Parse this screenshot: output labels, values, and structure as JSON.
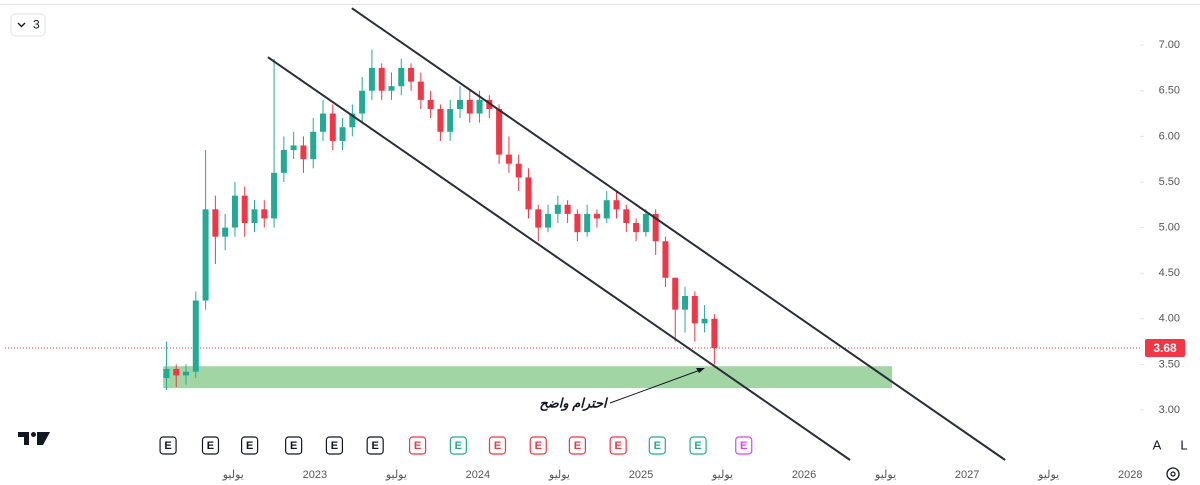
{
  "chart_data": {
    "type": "candlestick",
    "interval": "3",
    "up_color": "#22ab94",
    "down_color": "#f23645",
    "x": [
      2022.09,
      2022.15,
      2022.21,
      2022.27,
      2022.33,
      2022.39,
      2022.45,
      2022.51,
      2022.57,
      2022.63,
      2022.69,
      2022.75,
      2022.81,
      2022.87,
      2022.93,
      2022.99,
      2023.05,
      2023.11,
      2023.17,
      2023.23,
      2023.29,
      2023.35,
      2023.41,
      2023.47,
      2023.53,
      2023.59,
      2023.65,
      2023.71,
      2023.77,
      2023.83,
      2023.89,
      2023.95,
      2024.01,
      2024.07,
      2024.13,
      2024.19,
      2024.25,
      2024.31,
      2024.37,
      2024.43,
      2024.49,
      2024.55,
      2024.61,
      2024.67,
      2024.73,
      2024.79,
      2024.85,
      2024.91,
      2024.97,
      2025.03,
      2025.09,
      2025.15,
      2025.21,
      2025.27,
      2025.33,
      2025.39,
      2025.45
    ],
    "open": [
      3.35,
      3.45,
      3.38,
      3.42,
      4.2,
      5.2,
      4.9,
      5.0,
      5.35,
      5.05,
      5.2,
      5.1,
      5.6,
      5.85,
      5.9,
      5.75,
      6.05,
      6.25,
      5.95,
      6.1,
      6.25,
      6.5,
      6.75,
      6.5,
      6.55,
      6.75,
      6.6,
      6.4,
      6.3,
      6.05,
      6.3,
      6.4,
      6.25,
      6.4,
      6.3,
      5.8,
      5.7,
      5.55,
      5.2,
      5.0,
      5.15,
      5.25,
      5.15,
      4.95,
      5.15,
      5.1,
      5.3,
      5.2,
      5.05,
      4.95,
      5.15,
      4.85,
      4.45,
      4.1,
      4.25,
      3.95,
      4.0
    ],
    "high": [
      3.75,
      3.5,
      3.5,
      4.3,
      5.85,
      5.35,
      5.15,
      5.5,
      5.45,
      5.3,
      5.3,
      6.85,
      6.0,
      6.05,
      6.0,
      6.2,
      6.4,
      6.35,
      6.2,
      6.35,
      6.65,
      6.95,
      6.8,
      6.7,
      6.85,
      6.8,
      6.7,
      6.5,
      6.35,
      6.4,
      6.55,
      6.5,
      6.5,
      6.45,
      6.35,
      6.0,
      5.8,
      5.65,
      5.25,
      5.25,
      5.35,
      5.3,
      5.2,
      5.25,
      5.2,
      5.4,
      5.4,
      5.25,
      5.1,
      5.2,
      5.2,
      4.9,
      4.45,
      4.35,
      4.3,
      4.15,
      4.05
    ],
    "low": [
      3.22,
      3.25,
      3.28,
      3.35,
      4.1,
      4.6,
      4.75,
      4.9,
      4.9,
      4.95,
      5.0,
      5.0,
      5.5,
      5.75,
      5.6,
      5.65,
      5.95,
      5.85,
      5.85,
      6.0,
      6.15,
      6.4,
      6.4,
      6.4,
      6.45,
      6.5,
      6.3,
      6.2,
      5.95,
      5.95,
      6.2,
      6.15,
      6.15,
      6.2,
      5.7,
      5.6,
      5.4,
      5.1,
      4.85,
      4.95,
      5.05,
      5.05,
      4.85,
      4.9,
      5.0,
      5.05,
      5.1,
      4.95,
      4.85,
      4.9,
      4.7,
      4.35,
      3.75,
      3.85,
      3.75,
      3.85,
      3.5
    ],
    "close": [
      3.45,
      3.38,
      3.42,
      4.2,
      5.2,
      4.9,
      5.0,
      5.35,
      5.05,
      5.2,
      5.1,
      5.6,
      5.85,
      5.9,
      5.75,
      6.05,
      6.25,
      5.95,
      6.1,
      6.25,
      6.5,
      6.75,
      6.5,
      6.55,
      6.75,
      6.6,
      6.4,
      6.3,
      6.05,
      6.3,
      6.4,
      6.25,
      6.4,
      6.3,
      5.8,
      5.7,
      5.55,
      5.2,
      5.0,
      5.15,
      5.25,
      5.15,
      4.95,
      5.15,
      5.1,
      5.3,
      5.2,
      5.05,
      4.95,
      5.15,
      4.85,
      4.45,
      4.1,
      4.25,
      3.95,
      4.0,
      3.68
    ],
    "xlim": [
      2021.1,
      2028.06
    ],
    "ylim": [
      2.43,
      7.44
    ],
    "xticks": [
      {
        "value": 2022.5,
        "label": "يوليو"
      },
      2023,
      {
        "value": 2023.5,
        "label": "يوليو"
      },
      2024,
      {
        "value": 2024.5,
        "label": "يوليو"
      },
      2025,
      {
        "value": 2025.5,
        "label": "يوليو"
      },
      2026,
      {
        "value": 2026.5,
        "label": "يوليو"
      },
      2027,
      {
        "value": 2027.5,
        "label": "يوليو"
      },
      2028
    ],
    "yticks": [
      {
        "value": 3,
        "label": "3.00"
      },
      {
        "value": 3.5,
        "label": "3.50"
      },
      {
        "value": 4,
        "label": "4.00"
      },
      {
        "value": 4.5,
        "label": "4.50"
      },
      {
        "value": 5,
        "label": "5.00"
      },
      {
        "value": 5.5,
        "label": "5.50"
      },
      {
        "value": 6,
        "label": "6.00"
      },
      {
        "value": 6.5,
        "label": "6.50"
      },
      {
        "value": 7,
        "label": "7.00"
      }
    ],
    "last_price": 3.68,
    "last_price_color": "#f23645",
    "zone": {
      "x": [
        2022.07,
        2026.54
      ],
      "y": [
        3.24,
        3.48
      ],
      "color": "#81c784"
    },
    "trendlines": [
      {
        "x": [
          2023.227,
          2027.233
        ],
        "y": [
          7.405,
          2.452
        ],
        "color": "#2a2e39"
      },
      {
        "x": [
          2022.712,
          2026.282
        ],
        "y": [
          6.868,
          2.452
        ],
        "color": "#2a2e39"
      }
    ],
    "annotation": "احترام واضح",
    "events": [
      {
        "label": "E",
        "x": 2022.1,
        "color": "#131722"
      },
      {
        "label": "E",
        "x": 2022.36,
        "color": "#131722"
      },
      {
        "label": "E",
        "x": 2022.6,
        "color": "#131722"
      },
      {
        "label": "E",
        "x": 2022.87,
        "color": "#131722"
      },
      {
        "label": "E",
        "x": 2023.12,
        "color": "#131722"
      },
      {
        "label": "E",
        "x": 2023.37,
        "color": "#131722"
      },
      {
        "label": "E",
        "x": 2023.63,
        "color": "#f23645"
      },
      {
        "label": "E",
        "x": 2023.88,
        "color": "#22ab94"
      },
      {
        "label": "E",
        "x": 2024.12,
        "color": "#f23645"
      },
      {
        "label": "E",
        "x": 2024.37,
        "color": "#f23645"
      },
      {
        "label": "E",
        "x": 2024.61,
        "color": "#f23645"
      },
      {
        "label": "E",
        "x": 2024.86,
        "color": "#f23645"
      },
      {
        "label": "E",
        "x": 2025.1,
        "color": "#22ab94"
      },
      {
        "label": "E",
        "x": 2025.35,
        "color": "#22ab94"
      },
      {
        "label": "E",
        "x": 2025.63,
        "color": "#e040fb"
      }
    ],
    "buttons": [
      "A",
      "L"
    ]
  }
}
